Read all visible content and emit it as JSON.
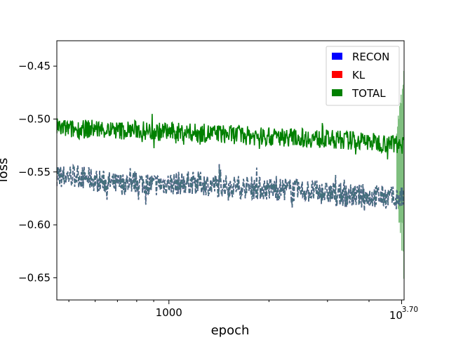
{
  "chart_data": {
    "type": "line",
    "title": "",
    "xlabel": "epoch",
    "ylabel": "loss",
    "xscale": "log",
    "xlim": [
      460,
      5100
    ],
    "ylim": [
      -0.671,
      -0.426
    ],
    "grid": false,
    "legend": {
      "placement": "top-right",
      "entries": [
        "RECON",
        "KL",
        "TOTAL"
      ]
    },
    "x_tick_labels": [
      {
        "value": 1000,
        "label": "1000"
      },
      {
        "value": 5012,
        "label_base": "10",
        "label_exp": "3.70"
      }
    ],
    "y_ticks": [
      -0.65,
      -0.6,
      -0.55,
      -0.5,
      -0.45
    ],
    "y_tick_labels": [
      "−0.65",
      "−0.60",
      "−0.55",
      "−0.50",
      "−0.45"
    ],
    "series": [
      {
        "name": "RECON",
        "color": "#0000ff",
        "style": "dashed",
        "visible_in_plot": "overlaps KL (blended teal)",
        "x": [
          460,
          520,
          600,
          700,
          800,
          900,
          1000,
          1200,
          1400,
          1600,
          1800,
          2000,
          2300,
          2600,
          3000,
          3400,
          3800,
          4200,
          4600,
          4800,
          5000,
          5080
        ],
        "y": [
          -0.555,
          -0.553,
          -0.558,
          -0.562,
          -0.559,
          -0.562,
          -0.561,
          -0.56,
          -0.563,
          -0.564,
          -0.565,
          -0.566,
          -0.567,
          -0.568,
          -0.57,
          -0.572,
          -0.573,
          -0.573,
          -0.574,
          -0.575,
          -0.575,
          -0.575
        ]
      },
      {
        "name": "KL",
        "color": "#ff0000",
        "style": "dashed",
        "visible_in_plot": "overlaps RECON (blended teal)",
        "x": [
          460,
          520,
          600,
          700,
          800,
          900,
          1000,
          1200,
          1400,
          1600,
          1800,
          2000,
          2300,
          2600,
          3000,
          3400,
          3800,
          4200,
          4600,
          4800,
          5000,
          5080
        ],
        "y": [
          -0.555,
          -0.553,
          -0.558,
          -0.562,
          -0.559,
          -0.562,
          -0.561,
          -0.56,
          -0.563,
          -0.564,
          -0.565,
          -0.566,
          -0.567,
          -0.568,
          -0.57,
          -0.572,
          -0.573,
          -0.573,
          -0.574,
          -0.575,
          -0.575,
          -0.575
        ]
      },
      {
        "name": "TOTAL",
        "color": "#008000",
        "style": "solid",
        "x": [
          460,
          520,
          600,
          700,
          800,
          900,
          1000,
          1200,
          1400,
          1600,
          1800,
          2000,
          2300,
          2600,
          3000,
          3400,
          3800,
          4200,
          4600,
          4800,
          5000,
          5080
        ],
        "y": [
          -0.508,
          -0.51,
          -0.509,
          -0.511,
          -0.51,
          -0.512,
          -0.512,
          -0.513,
          -0.514,
          -0.515,
          -0.516,
          -0.517,
          -0.517,
          -0.518,
          -0.519,
          -0.52,
          -0.521,
          -0.522,
          -0.523,
          -0.523,
          -0.524,
          -0.524
        ]
      }
    ],
    "variance_band": {
      "color": "#7fbf7f",
      "x_start": 4850,
      "x_end": 5100,
      "y_low": -0.665,
      "y_high": -0.45
    },
    "noise_amplitude": {
      "RECON": 0.011,
      "TOTAL": 0.009
    }
  }
}
